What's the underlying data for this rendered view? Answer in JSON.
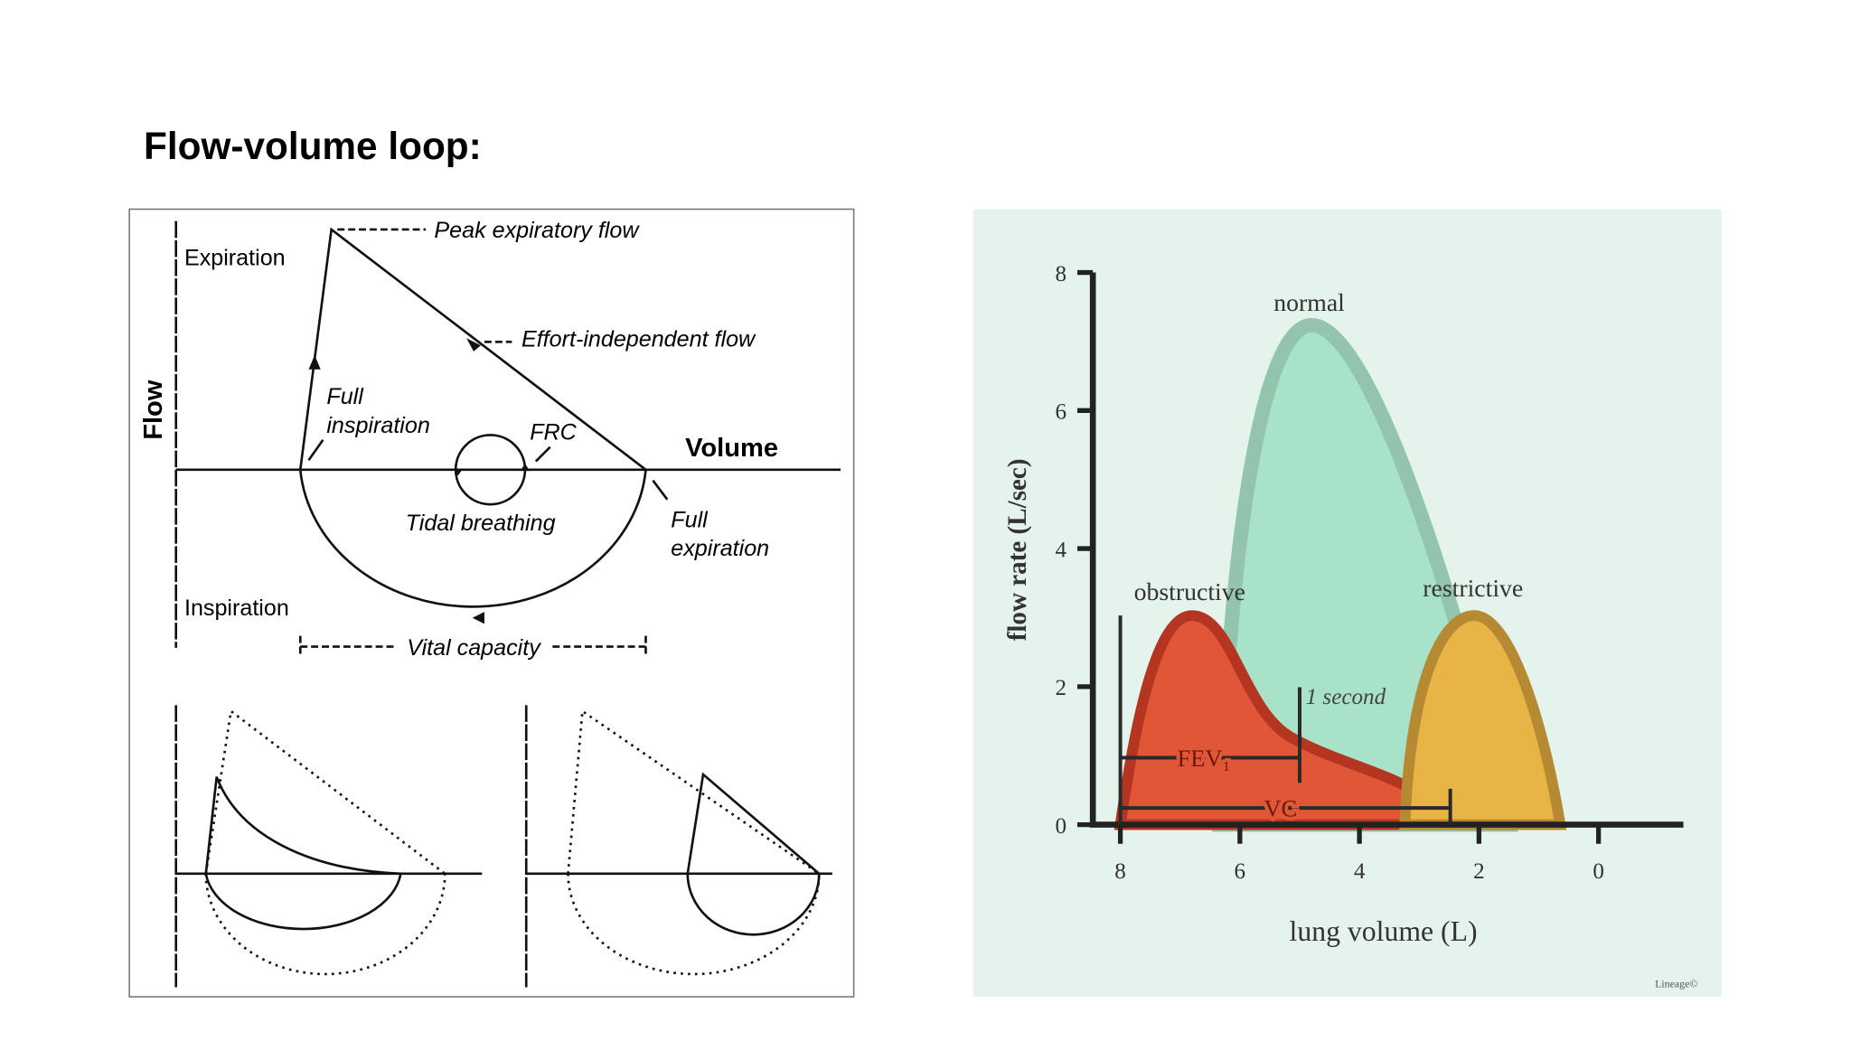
{
  "title": "Flow-volume loop:",
  "left_diagram": {
    "peak": "Peak expiratory flow",
    "expiration": "Expiration",
    "effort": "Effort-independent flow",
    "flow": "Flow",
    "full_inspiration": [
      "Full",
      "inspiration"
    ],
    "frc": "FRC",
    "volume": "Volume",
    "tidal": "Tidal breathing",
    "full_expiration": [
      "Full",
      "expiration"
    ],
    "inspiration": "Inspiration",
    "vital_capacity": "Vital capacity"
  },
  "right_diagram": {
    "ylabel": "flow rate (L/sec)",
    "xlabel": "lung volume (L)",
    "yticks": [
      0,
      2,
      4,
      6,
      8
    ],
    "xticks": [
      8,
      6,
      4,
      2,
      0
    ],
    "normal": "normal",
    "obstructive": "obstructive",
    "restrictive": "restrictive",
    "one_second": "1 second",
    "fev": "FEV₁",
    "vc": "VC",
    "signature": "Lineage©"
  }
}
